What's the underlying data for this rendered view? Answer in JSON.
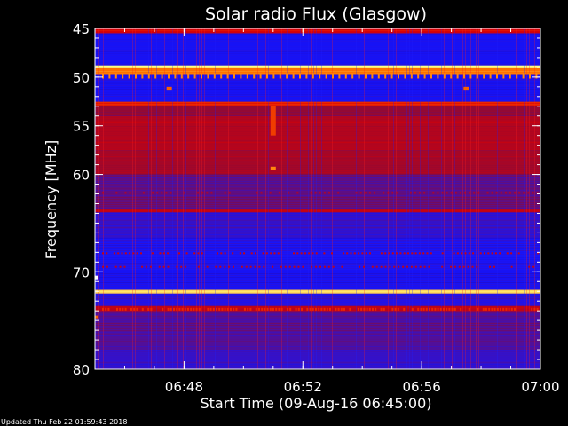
{
  "chart_data": {
    "type": "heatmap",
    "title": "Solar radio Flux (Glasgow)",
    "xlabel": "Start Time (09-Aug-16 06:45:00)",
    "ylabel": "Frequency [MHz]",
    "x_range": [
      "06:45",
      "07:00"
    ],
    "y_range": [
      45,
      80
    ],
    "y_inverted": true,
    "x_ticks": [
      "06:48",
      "06:52",
      "06:56",
      "07:00"
    ],
    "y_ticks": [
      45,
      50,
      55,
      60,
      70,
      80
    ],
    "grid": false,
    "colormap": [
      "#000000",
      "#3a0070",
      "#1414ff",
      "#8a0a3a",
      "#e00000",
      "#ff7a00",
      "#ffff80"
    ],
    "bands": [
      {
        "from": 45.0,
        "to": 45.5,
        "level": 0.65
      },
      {
        "from": 45.5,
        "to": 48.8,
        "level": 0.32
      },
      {
        "from": 48.8,
        "to": 49.1,
        "level": 1.0
      },
      {
        "from": 49.1,
        "to": 49.7,
        "level": 0.82
      },
      {
        "from": 49.7,
        "to": 52.5,
        "level": 0.32
      },
      {
        "from": 52.5,
        "to": 53.0,
        "level": 0.72
      },
      {
        "from": 53.0,
        "to": 54.0,
        "level": 0.52
      },
      {
        "from": 54.0,
        "to": 57.5,
        "level": 0.58
      },
      {
        "from": 57.5,
        "to": 60.0,
        "level": 0.55
      },
      {
        "from": 60.0,
        "to": 63.5,
        "level": 0.44
      },
      {
        "from": 63.5,
        "to": 63.9,
        "level": 0.62
      },
      {
        "from": 63.9,
        "to": 66.5,
        "level": 0.38
      },
      {
        "from": 66.5,
        "to": 69.8,
        "level": 0.34
      },
      {
        "from": 69.8,
        "to": 71.8,
        "level": 0.32
      },
      {
        "from": 71.8,
        "to": 72.2,
        "level": 0.95
      },
      {
        "from": 72.2,
        "to": 73.5,
        "level": 0.36
      },
      {
        "from": 73.5,
        "to": 74.0,
        "level": 0.6
      },
      {
        "from": 74.0,
        "to": 78.0,
        "level": 0.42
      },
      {
        "from": 78.0,
        "to": 80.0,
        "level": 0.38
      }
    ],
    "features": [
      {
        "time": "06:51",
        "freq_from": 53.0,
        "freq_to": 56.0,
        "level": 0.75
      },
      {
        "time": "06:51",
        "freq_from": 59.2,
        "freq_to": 59.5,
        "level": 0.85
      },
      {
        "time": "06:47.5",
        "freq_from": 51.0,
        "freq_to": 51.3,
        "level": 0.8
      },
      {
        "time": "06:57.5",
        "freq_from": 51.0,
        "freq_to": 51.3,
        "level": 0.8
      }
    ],
    "footer": "Updated Thu Feb 22 01:59:43 2018"
  }
}
